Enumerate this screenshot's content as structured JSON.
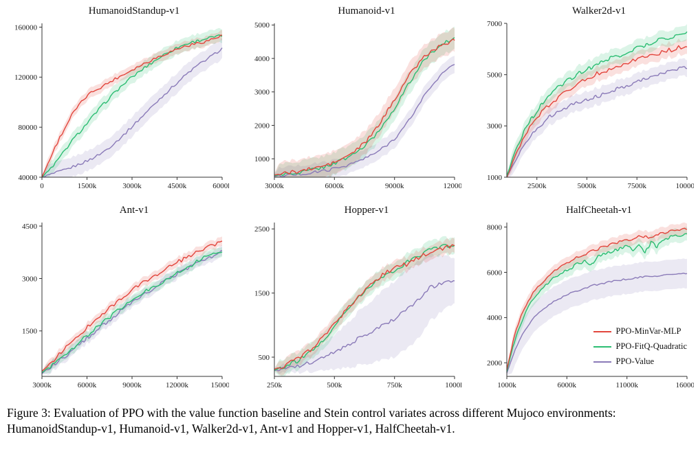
{
  "figure": {
    "caption": "Figure 3: Evaluation of PPO with the value function baseline and Stein control variates across different Mujoco environments: HumanoidStandup-v1, Humanoid-v1, Walker2d-v1, Ant-v1 and Hopper-v1, HalfCheetah-v1."
  },
  "legend": {
    "position": "lower-right-of-halfcheetah-plot",
    "items": [
      {
        "label": "PPO-MinVar-MLP",
        "color": "#e2453c"
      },
      {
        "label": "PPO-FitQ-Quadratic",
        "color": "#2bbd72"
      },
      {
        "label": "PPO-Value",
        "color": "#8a7ab8"
      }
    ]
  },
  "chart_data": [
    {
      "type": "line",
      "title": "HumanoidStandup-v1",
      "xlabel": "",
      "ylabel": "",
      "xlim": [
        0,
        6000
      ],
      "ylim": [
        40000,
        163000
      ],
      "xticks": [
        0,
        1500,
        3000,
        4500,
        6000
      ],
      "xtick_labels": [
        "0",
        "1500k",
        "3000k",
        "4500k",
        "6000k"
      ],
      "yticks": [
        40000,
        80000,
        120000,
        160000
      ],
      "ytick_labels": [
        "40000",
        "80000",
        "120000",
        "160000"
      ],
      "x": [
        0,
        200,
        400,
        600,
        800,
        1000,
        1250,
        1500,
        1750,
        2000,
        2250,
        2500,
        2750,
        3000,
        3250,
        3500,
        3750,
        4000,
        4250,
        4500,
        4750,
        5000,
        5250,
        5500,
        5750,
        6000
      ],
      "series": [
        {
          "name": "PPO-Value",
          "color": "#8a7ab8",
          "noise": 1100,
          "band": 8000,
          "values": [
            40000,
            41500,
            43000,
            44500,
            46000,
            48000,
            50500,
            53000,
            56000,
            59500,
            64000,
            69000,
            74500,
            80500,
            86500,
            92500,
            98500,
            104500,
            110000,
            115500,
            121000,
            126000,
            130500,
            134500,
            138500,
            143000
          ]
        },
        {
          "name": "PPO-FitQ-Quadratic",
          "color": "#2bbd72",
          "noise": 1300,
          "band": 5500,
          "values": [
            40000,
            44500,
            50000,
            56000,
            62500,
            69000,
            76000,
            83000,
            90000,
            97000,
            103500,
            109500,
            115000,
            120000,
            124500,
            129000,
            133000,
            137000,
            140500,
            143500,
            146000,
            148000,
            149500,
            151000,
            152000,
            153000
          ]
        },
        {
          "name": "PPO-MinVar-MLP",
          "color": "#e2453c",
          "noise": 1200,
          "band": 4000,
          "values": [
            40000,
            51000,
            62000,
            72000,
            81000,
            90000,
            98000,
            105000,
            109500,
            112500,
            116000,
            119500,
            122500,
            126000,
            129000,
            132000,
            135000,
            137500,
            140000,
            142500,
            144500,
            146000,
            147500,
            149000,
            151000,
            153000
          ]
        }
      ]
    },
    {
      "type": "line",
      "title": "Humanoid-v1",
      "xlabel": "",
      "ylabel": "",
      "xlim": [
        3000,
        12000
      ],
      "ylim": [
        450,
        5050
      ],
      "xticks": [
        3000,
        6000,
        9000,
        12000
      ],
      "xtick_labels": [
        "3000k",
        "6000k",
        "9000k",
        "12000k"
      ],
      "yticks": [
        1000,
        2000,
        3000,
        4000,
        5000
      ],
      "ytick_labels": [
        "1000",
        "2000",
        "3000",
        "4000",
        "5000"
      ],
      "x": [
        3000,
        3500,
        4000,
        4500,
        5000,
        5500,
        6000,
        6500,
        7000,
        7500,
        8000,
        8500,
        9000,
        9500,
        10000,
        10500,
        11000,
        11500,
        12000
      ],
      "series": [
        {
          "name": "PPO-Value",
          "color": "#8a7ab8",
          "noise": 45,
          "band": 260,
          "values": [
            480,
            500,
            525,
            555,
            595,
            645,
            705,
            785,
            885,
            1005,
            1155,
            1355,
            1605,
            1955,
            2405,
            2905,
            3305,
            3605,
            3820
          ]
        },
        {
          "name": "PPO-FitQ-Quadratic",
          "color": "#2bbd72",
          "noise": 60,
          "band": 330,
          "values": [
            500,
            535,
            575,
            625,
            685,
            765,
            865,
            995,
            1160,
            1370,
            1670,
            2070,
            2520,
            3020,
            3520,
            3960,
            4260,
            4460,
            4600
          ]
        },
        {
          "name": "PPO-MinVar-MLP",
          "color": "#e2453c",
          "noise": 60,
          "band": 350,
          "values": [
            520,
            560,
            610,
            660,
            720,
            790,
            890,
            1030,
            1220,
            1470,
            1820,
            2280,
            2780,
            3280,
            3720,
            4060,
            4280,
            4420,
            4580
          ]
        }
      ]
    },
    {
      "type": "line",
      "title": "Walker2d-v1",
      "xlabel": "",
      "ylabel": "",
      "xlim": [
        1000,
        10000
      ],
      "ylim": [
        1000,
        7000
      ],
      "xticks": [
        2500,
        5000,
        7500,
        10000
      ],
      "xtick_labels": [
        "2500k",
        "5000k",
        "7500k",
        "10000k"
      ],
      "yticks": [
        1000,
        3000,
        5000,
        7000
      ],
      "ytick_labels": [
        "1000",
        "3000",
        "5000",
        "7000"
      ],
      "x": [
        1000,
        1500,
        2000,
        2500,
        3000,
        3500,
        4000,
        4500,
        5000,
        5500,
        6000,
        6500,
        7000,
        7500,
        8000,
        8500,
        9000,
        9500,
        10000
      ],
      "series": [
        {
          "name": "PPO-Value",
          "color": "#8a7ab8",
          "noise": 80,
          "band": 330,
          "values": [
            1000,
            1800,
            2400,
            2900,
            3280,
            3540,
            3740,
            3890,
            4010,
            4150,
            4290,
            4440,
            4590,
            4740,
            4880,
            4990,
            5090,
            5200,
            5300
          ]
        },
        {
          "name": "PPO-MinVar-MLP",
          "color": "#e2453c",
          "noise": 90,
          "band": 280,
          "values": [
            1000,
            2000,
            2750,
            3300,
            3750,
            4080,
            4380,
            4630,
            4830,
            5030,
            5180,
            5330,
            5480,
            5600,
            5720,
            5820,
            5920,
            6050,
            6080
          ]
        },
        {
          "name": "PPO-FitQ-Quadratic",
          "color": "#2bbd72",
          "noise": 90,
          "band": 300,
          "values": [
            1050,
            2200,
            3000,
            3600,
            4100,
            4450,
            4750,
            5000,
            5200,
            5400,
            5580,
            5720,
            5880,
            6030,
            6180,
            6330,
            6440,
            6540,
            6600
          ]
        }
      ]
    },
    {
      "type": "line",
      "title": "Ant-v1",
      "xlabel": "",
      "ylabel": "",
      "xlim": [
        3000,
        15000
      ],
      "ylim": [
        200,
        4600
      ],
      "xticks": [
        3000,
        6000,
        9000,
        12000,
        15000
      ],
      "xtick_labels": [
        "3000k",
        "6000k",
        "9000k",
        "12000k",
        "15000k"
      ],
      "yticks": [
        1500,
        3000,
        4500
      ],
      "ytick_labels": [
        "1500",
        "3000",
        "4500"
      ],
      "x": [
        3000,
        3600,
        4200,
        4800,
        5400,
        6000,
        6600,
        7200,
        7800,
        8400,
        9000,
        9600,
        10200,
        10800,
        11400,
        12000,
        12600,
        13200,
        13800,
        14400,
        15000
      ],
      "series": [
        {
          "name": "PPO-Value",
          "color": "#8a7ab8",
          "noise": 60,
          "band": 150,
          "values": [
            280,
            470,
            660,
            860,
            1070,
            1290,
            1510,
            1710,
            1910,
            2110,
            2300,
            2480,
            2650,
            2820,
            2980,
            3130,
            3280,
            3420,
            3540,
            3650,
            3750
          ]
        },
        {
          "name": "PPO-FitQ-Quadratic",
          "color": "#2bbd72",
          "noise": 60,
          "band": 140,
          "values": [
            300,
            500,
            700,
            910,
            1130,
            1360,
            1580,
            1790,
            1990,
            2190,
            2380,
            2550,
            2700,
            2850,
            3000,
            3150,
            3300,
            3450,
            3590,
            3700,
            3800
          ]
        },
        {
          "name": "PPO-MinVar-MLP",
          "color": "#e2453c",
          "noise": 60,
          "band": 130,
          "values": [
            350,
            600,
            850,
            1100,
            1350,
            1600,
            1850,
            2060,
            2260,
            2460,
            2660,
            2850,
            3000,
            3150,
            3300,
            3450,
            3600,
            3710,
            3850,
            3960,
            4100
          ]
        }
      ]
    },
    {
      "type": "line",
      "title": "Hopper-v1",
      "xlabel": "",
      "ylabel": "",
      "xlim": [
        250,
        1000
      ],
      "ylim": [
        200,
        2600
      ],
      "xticks": [
        250,
        500,
        750,
        1000
      ],
      "xtick_labels": [
        "250k",
        "500k",
        "750k",
        "1000k"
      ],
      "yticks": [
        500,
        1500,
        2500
      ],
      "ytick_labels": [
        "500",
        "1500",
        "2500"
      ],
      "x": [
        250,
        300,
        350,
        400,
        450,
        500,
        550,
        600,
        650,
        700,
        750,
        800,
        850,
        900,
        950,
        1000
      ],
      "series": [
        {
          "name": "PPO-Value",
          "color": "#8a7ab8",
          "noise": 30,
          "band": [
            50,
            70,
            100,
            140,
            200,
            270,
            340,
            420,
            480,
            540,
            590,
            620,
            600,
            520,
            430,
            350
          ],
          "values": [
            290,
            320,
            360,
            420,
            495,
            575,
            670,
            790,
            895,
            1000,
            1100,
            1250,
            1400,
            1590,
            1650,
            1700
          ]
        },
        {
          "name": "PPO-FitQ-Quadratic",
          "color": "#2bbd72",
          "noise": 35,
          "band": 130,
          "values": [
            300,
            360,
            450,
            580,
            760,
            980,
            1220,
            1430,
            1620,
            1770,
            1850,
            1980,
            2090,
            2170,
            2230,
            2260
          ]
        },
        {
          "name": "PPO-MinVar-MLP",
          "color": "#e2453c",
          "noise": 35,
          "band": 110,
          "values": [
            310,
            380,
            480,
            620,
            800,
            1010,
            1250,
            1450,
            1640,
            1790,
            1890,
            1950,
            2050,
            2150,
            2200,
            2250
          ]
        }
      ]
    },
    {
      "type": "line",
      "title": "HalfCheetah-v1",
      "xlabel": "",
      "ylabel": "",
      "xlim": [
        1000,
        16000
      ],
      "ylim": [
        1400,
        8200
      ],
      "xticks": [
        1000,
        6000,
        11000,
        16000
      ],
      "xtick_labels": [
        "1000k",
        "6000k",
        "11000k",
        "16000k"
      ],
      "yticks": [
        2000,
        4000,
        6000,
        8000
      ],
      "ytick_labels": [
        "2000",
        "4000",
        "6000",
        "8000"
      ],
      "x": [
        1000,
        1500,
        2000,
        2500,
        3000,
        3500,
        4000,
        4500,
        5000,
        5500,
        6000,
        6500,
        7000,
        7500,
        8000,
        8500,
        9000,
        9500,
        10000,
        10500,
        11000,
        11500,
        12000,
        12500,
        13000,
        13500,
        14000,
        14500,
        15000,
        15500,
        16000
      ],
      "series": [
        {
          "name": "PPO-Value",
          "color": "#8a7ab8",
          "noise": 40,
          "band": 650,
          "values": [
            1550,
            2300,
            2950,
            3450,
            3820,
            4120,
            4360,
            4560,
            4720,
            4870,
            5000,
            5110,
            5210,
            5310,
            5400,
            5460,
            5520,
            5570,
            5620,
            5660,
            5700,
            5740,
            5770,
            5800,
            5820,
            5845,
            5870,
            5890,
            5915,
            5935,
            5950
          ]
        },
        {
          "name": "PPO-FitQ-Quadratic",
          "color": "#2bbd72",
          "noise": 90,
          "band": 300,
          "values": [
            1600,
            2700,
            3550,
            4150,
            4650,
            5000,
            5300,
            5550,
            5760,
            5950,
            6100,
            6250,
            6400,
            6520,
            6300,
            6650,
            6800,
            6900,
            6980,
            7050,
            7150,
            6950,
            7250,
            6900,
            7320,
            7100,
            7450,
            7550,
            7620,
            7670,
            7720
          ]
        },
        {
          "name": "PPO-MinVar-MLP",
          "color": "#e2453c",
          "noise": 70,
          "band": 260,
          "values": [
            1700,
            2900,
            3800,
            4450,
            4950,
            5300,
            5600,
            5850,
            6060,
            6250,
            6400,
            6550,
            6700,
            6820,
            6920,
            7020,
            7120,
            7200,
            7280,
            7350,
            7430,
            7500,
            7560,
            7620,
            7500,
            7700,
            7760,
            7810,
            7850,
            7880,
            7900
          ]
        }
      ]
    }
  ]
}
